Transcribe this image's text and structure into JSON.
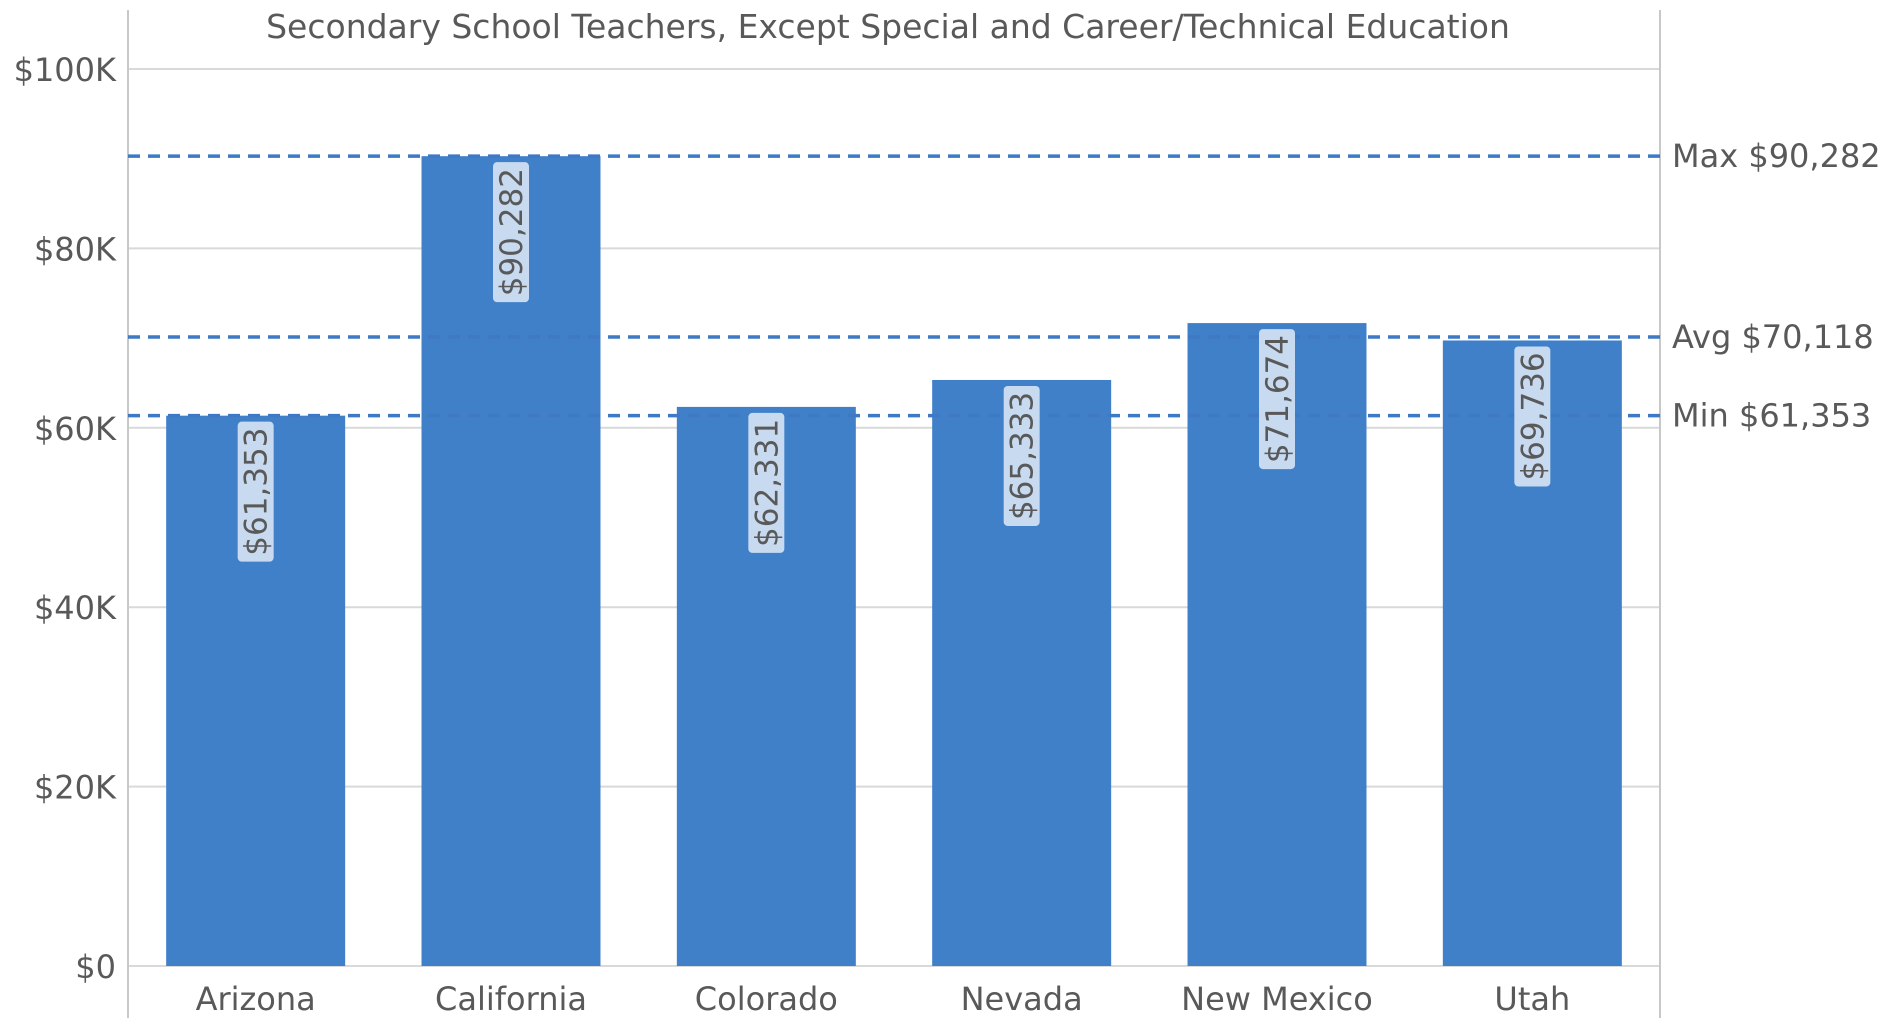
{
  "chart_data": {
    "type": "bar",
    "title": "Secondary School Teachers, Except Special and Career/Technical Education",
    "xlabel": "",
    "ylabel": "",
    "categories": [
      "Arizona",
      "California",
      "Colorado",
      "Nevada",
      "New Mexico",
      "Utah"
    ],
    "values": [
      61353,
      90282,
      62331,
      65333,
      71674,
      69736
    ],
    "data_labels": [
      "$61,353",
      "$90,282",
      "$62,331",
      "$65,333",
      "$71,674",
      "$69,736"
    ],
    "ylim": [
      0,
      100000
    ],
    "y_ticks": [
      0,
      20000,
      40000,
      60000,
      80000,
      100000
    ],
    "y_tick_labels": [
      "$0",
      "$20K",
      "$40K",
      "$60K",
      "$80K",
      "$100K"
    ],
    "grid": true,
    "reference_lines": [
      {
        "label": "Max $90,282",
        "value": 90282
      },
      {
        "label": "Avg $70,118",
        "value": 70118
      },
      {
        "label": "Min $61,353",
        "value": 61353
      }
    ],
    "colors": {
      "bar": "#4080C9",
      "reference_line": "#3F79C6",
      "grid": "#D9D9D9",
      "axis_border": "#C8C8C8",
      "text": "#595959",
      "data_label_bg": "#C7DAF0"
    }
  }
}
